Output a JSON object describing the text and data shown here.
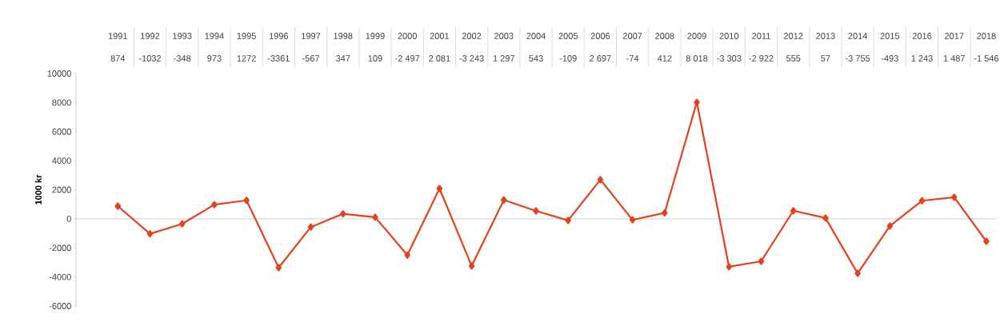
{
  "chart_data": {
    "type": "line",
    "ylabel": "1000 kr",
    "categories": [
      "1991",
      "1992",
      "1993",
      "1994",
      "1995",
      "1996",
      "1997",
      "1998",
      "1999",
      "2000",
      "2001",
      "2002",
      "2003",
      "2004",
      "2005",
      "2006",
      "2007",
      "2008",
      "2009",
      "2010",
      "2011",
      "2012",
      "2013",
      "2014",
      "2015",
      "2016",
      "2017",
      "2018"
    ],
    "values": [
      874,
      -1032,
      -348,
      973,
      1272,
      -3361,
      -567,
      347,
      109,
      -2497,
      2081,
      -3243,
      1297,
      543,
      -109,
      2697,
      -74,
      412,
      8018,
      -3303,
      -2922,
      555,
      57,
      -3755,
      -493,
      1243,
      1487,
      -1546
    ],
    "value_labels": [
      "874",
      "-1032",
      "-348",
      "973",
      "1272",
      "-3361",
      "-567",
      "347",
      "109",
      "-2 497",
      "2 081",
      "-3 243",
      "1 297",
      "543",
      "-109",
      "2 697",
      "-74",
      "412",
      "8 018",
      "-3 303",
      "-2 922",
      "555",
      "57",
      "-3 755",
      "-493",
      "1 243",
      "1 487",
      "-1 546"
    ],
    "color": "#e8401c",
    "marker": "diamond",
    "ylim": [
      -6000,
      10000
    ],
    "yticks": [
      -6000,
      -4000,
      -2000,
      0,
      2000,
      4000,
      6000,
      8000,
      10000
    ]
  }
}
